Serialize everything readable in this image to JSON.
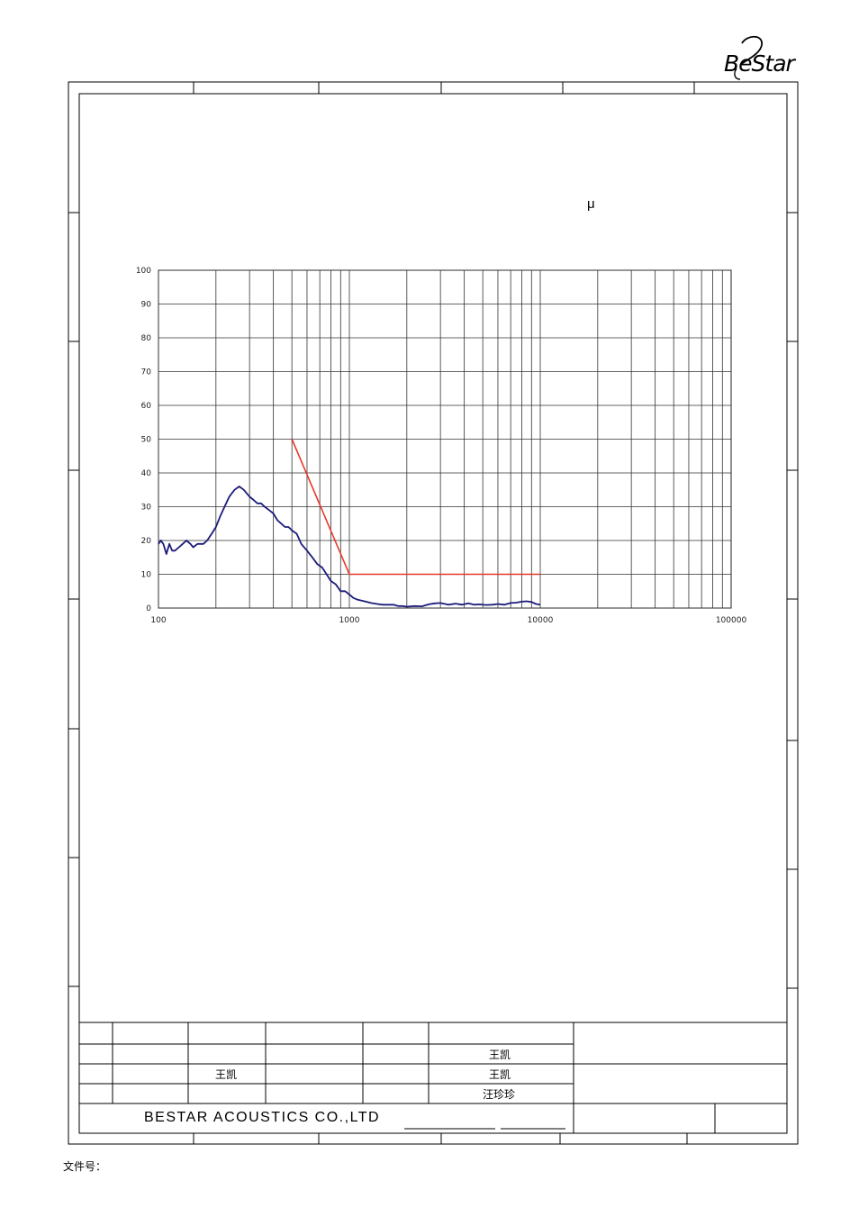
{
  "header": {
    "logo_text": "BeStar",
    "mu_symbol": "μ"
  },
  "title_block": {
    "company": "BESTAR  ACOUSTICS  CO.,LTD",
    "names": {
      "row2_col6": "王凯",
      "row3_col3": "王凯",
      "row3_col6": "王凯",
      "row4_col6": "汪珍珍"
    }
  },
  "footer": {
    "doc_no_label": "文件号："
  },
  "chart_data": {
    "type": "line",
    "title": "",
    "xlabel": "",
    "ylabel": "",
    "xscale": "log",
    "xlim": [
      100,
      100000
    ],
    "ylim": [
      0,
      100
    ],
    "x_ticks": [
      "100",
      "1000",
      "10000",
      "100000"
    ],
    "y_ticks": [
      "0",
      "10",
      "20",
      "30",
      "40",
      "50",
      "60",
      "70",
      "80",
      "90",
      "100"
    ],
    "grid": true,
    "series": [
      {
        "color": "#1c1c7a",
        "x": [
          100,
          103,
          106,
          110,
          114,
          118,
          122,
          128,
          134,
          140,
          147,
          152,
          160,
          166,
          172,
          180,
          190,
          200,
          210,
          222,
          235,
          250,
          265,
          280,
          300,
          315,
          330,
          345,
          360,
          380,
          400,
          420,
          440,
          460,
          480,
          500,
          530,
          560,
          600,
          640,
          680,
          720,
          760,
          800,
          850,
          900,
          950,
          1000,
          1050,
          1100,
          1200,
          1300,
          1400,
          1500,
          1600,
          1700,
          1800,
          1900,
          2000,
          2200,
          2400,
          2600,
          2800,
          3000,
          3300,
          3600,
          3900,
          4200,
          4500,
          4800,
          5200,
          5600,
          6000,
          6500,
          7000,
          7500,
          8000,
          8500,
          9000,
          9500,
          10000
        ],
        "values": [
          19,
          20,
          19,
          16,
          19,
          17,
          17,
          18,
          19,
          20,
          19,
          18,
          19,
          19,
          19,
          20,
          22,
          24,
          27,
          30,
          33,
          35,
          36,
          35,
          33,
          32,
          31,
          31,
          30,
          29,
          28,
          26,
          25,
          24,
          24,
          23,
          22,
          19,
          17,
          15,
          13,
          12,
          10,
          8,
          7,
          5,
          5,
          4,
          3,
          2.5,
          2,
          1.5,
          1.2,
          1,
          1,
          1,
          0.6,
          0.6,
          0.4,
          0.6,
          0.5,
          1.1,
          1.4,
          1.5,
          1.0,
          1.3,
          1.0,
          1.4,
          1.0,
          1.1,
          0.9,
          1.0,
          1.2,
          1.0,
          1.5,
          1.6,
          1.9,
          2.0,
          1.8,
          1.2,
          1.0
        ]
      },
      {
        "color": "#e8372a",
        "x": [
          500,
          1000,
          10000
        ],
        "values": [
          50,
          10,
          10
        ]
      }
    ]
  }
}
